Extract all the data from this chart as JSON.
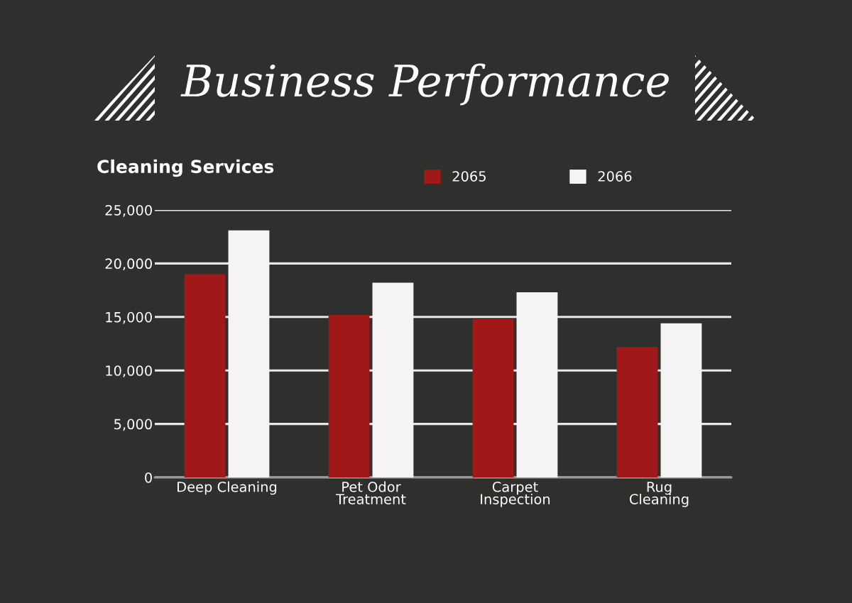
{
  "chart_data": {
    "type": "bar",
    "title": "Business Performance",
    "subtitle": "Cleaning Services",
    "categories": [
      "Deep Cleaning",
      "Pet Odor\nTreatment",
      "Carpet\nInspection",
      "Rug\nCleaning"
    ],
    "series": [
      {
        "name": "2065",
        "color": "#a01818",
        "values": [
          19000,
          15200,
          14800,
          12200
        ]
      },
      {
        "name": "2066",
        "color": "#f5f3f3",
        "values": [
          23100,
          18200,
          17300,
          14400
        ]
      }
    ],
    "ylim": [
      0,
      25000
    ],
    "yticks": [
      {
        "value": 0,
        "label": "0"
      },
      {
        "value": 5000,
        "label": "5,000"
      },
      {
        "value": 10000,
        "label": "10,000"
      },
      {
        "value": 15000,
        "label": "15,000"
      },
      {
        "value": 20000,
        "label": "20,000"
      },
      {
        "value": 25000,
        "label": "25,000"
      }
    ],
    "grid": "y",
    "legend": "top right"
  }
}
